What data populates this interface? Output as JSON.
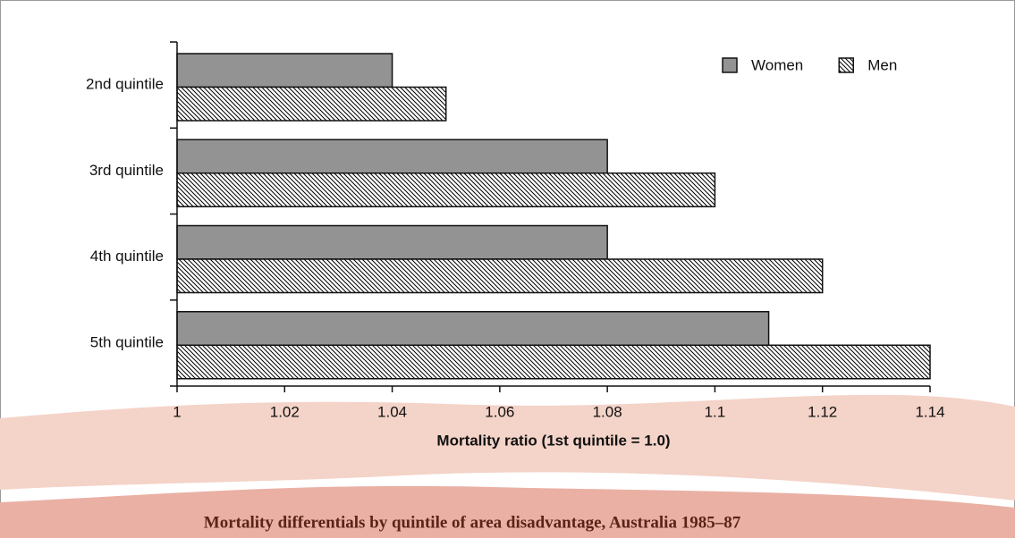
{
  "chart_data": {
    "type": "barh",
    "title": "Mortality differentials by quintile of area disadvantage, Australia 1985–87",
    "x_label": "Mortality ratio (1st quintile = 1.0)",
    "categories": [
      "2nd quintile",
      "3rd quintile",
      "4th quintile",
      "5th quintile"
    ],
    "series": [
      {
        "name": "Women",
        "color": "#939393",
        "hatch": false,
        "values": [
          1.04,
          1.08,
          1.08,
          1.11
        ]
      },
      {
        "name": "Men",
        "color": "#000000",
        "hatch": true,
        "values": [
          1.05,
          1.1,
          1.12,
          1.14
        ]
      }
    ],
    "xlim": [
      1,
      1.14
    ],
    "xticks": [
      1,
      1.02,
      1.04,
      1.06,
      1.08,
      1.1,
      1.12,
      1.14
    ],
    "legend": "top-right"
  }
}
